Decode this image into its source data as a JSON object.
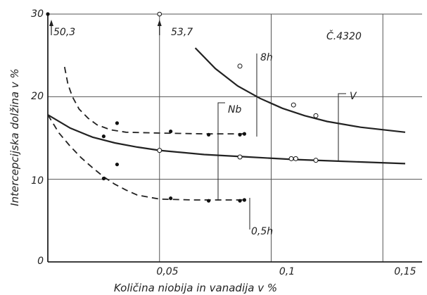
{
  "chart_data": {
    "type": "line",
    "title": "Č.4320",
    "xlabel": "Količina niobija in vanadija v %",
    "ylabel": "Intercepcijska dolžina v %",
    "xlim": [
      0,
      0.16
    ],
    "ylim": [
      0,
      30
    ],
    "x_ticks": [
      {
        "value": 0.05,
        "label": "0,05"
      },
      {
        "value": 0.1,
        "label": "0,1"
      },
      {
        "value": 0.15,
        "label": "0,15"
      }
    ],
    "y_ticks": [
      {
        "value": 0,
        "label": "0"
      },
      {
        "value": 10,
        "label": "10"
      },
      {
        "value": 20,
        "label": "20"
      },
      {
        "value": 30,
        "label": "30"
      }
    ],
    "grid": true,
    "series": [
      {
        "name": "Nb 8h",
        "style": "dashed",
        "color": "#222222",
        "curve": [
          [
            0.0075,
            23.6
          ],
          [
            0.009,
            21.5
          ],
          [
            0.011,
            20.0
          ],
          [
            0.014,
            18.5
          ],
          [
            0.018,
            17.4
          ],
          [
            0.022,
            16.6
          ],
          [
            0.028,
            16.0
          ],
          [
            0.035,
            15.7
          ],
          [
            0.05,
            15.6
          ],
          [
            0.07,
            15.5
          ],
          [
            0.088,
            15.5
          ]
        ],
        "points": [
          [
            0.025,
            15.2
          ],
          [
            0.031,
            16.8
          ],
          [
            0.055,
            15.8
          ],
          [
            0.072,
            15.4
          ],
          [
            0.086,
            15.4
          ],
          [
            0.088,
            15.5
          ]
        ]
      },
      {
        "name": "Nb 0,5h",
        "style": "dashed",
        "color": "#222222",
        "curve": [
          [
            0,
            17.8
          ],
          [
            0.005,
            15.6
          ],
          [
            0.01,
            14.0
          ],
          [
            0.015,
            12.6
          ],
          [
            0.02,
            11.4
          ],
          [
            0.025,
            10.3
          ],
          [
            0.03,
            9.4
          ],
          [
            0.035,
            8.7
          ],
          [
            0.04,
            8.1
          ],
          [
            0.05,
            7.6
          ],
          [
            0.065,
            7.5
          ],
          [
            0.088,
            7.5
          ]
        ],
        "points": [
          [
            0.025,
            10.1
          ],
          [
            0.031,
            11.8
          ],
          [
            0.055,
            7.7
          ],
          [
            0.072,
            7.4
          ],
          [
            0.086,
            7.4
          ],
          [
            0.088,
            7.5
          ]
        ]
      },
      {
        "name": "V 0,5h",
        "style": "solid",
        "color": "#222222",
        "curve": [
          [
            0,
            17.8
          ],
          [
            0.01,
            16.2
          ],
          [
            0.02,
            15.1
          ],
          [
            0.03,
            14.4
          ],
          [
            0.04,
            13.9
          ],
          [
            0.05,
            13.5
          ],
          [
            0.07,
            13.0
          ],
          [
            0.09,
            12.7
          ],
          [
            0.11,
            12.4
          ],
          [
            0.13,
            12.2
          ],
          [
            0.16,
            11.9
          ]
        ],
        "points": [
          [
            0.05,
            13.5
          ],
          [
            0.086,
            12.7
          ],
          [
            0.109,
            12.5
          ],
          [
            0.111,
            12.5
          ],
          [
            0.12,
            12.3
          ]
        ]
      },
      {
        "name": "V 8h",
        "style": "solid",
        "color": "#222222",
        "curve": [
          [
            0.066,
            25.9
          ],
          [
            0.075,
            23.4
          ],
          [
            0.085,
            21.3
          ],
          [
            0.095,
            19.8
          ],
          [
            0.105,
            18.6
          ],
          [
            0.115,
            17.7
          ],
          [
            0.125,
            17.0
          ],
          [
            0.14,
            16.3
          ],
          [
            0.16,
            15.7
          ]
        ],
        "points": [
          [
            0.086,
            23.7
          ],
          [
            0.11,
            19.0
          ],
          [
            0.12,
            17.7
          ]
        ]
      }
    ],
    "offscale_markers": [
      {
        "x": 0.0,
        "value_label": "50,3"
      },
      {
        "x": 0.05,
        "value_label": "53,7"
      }
    ],
    "annotations": [
      {
        "id": "nb",
        "text": "Nb"
      },
      {
        "id": "v",
        "text": "V"
      },
      {
        "id": "t8",
        "text": "8h"
      },
      {
        "id": "t05",
        "text": "0,5h"
      }
    ]
  }
}
